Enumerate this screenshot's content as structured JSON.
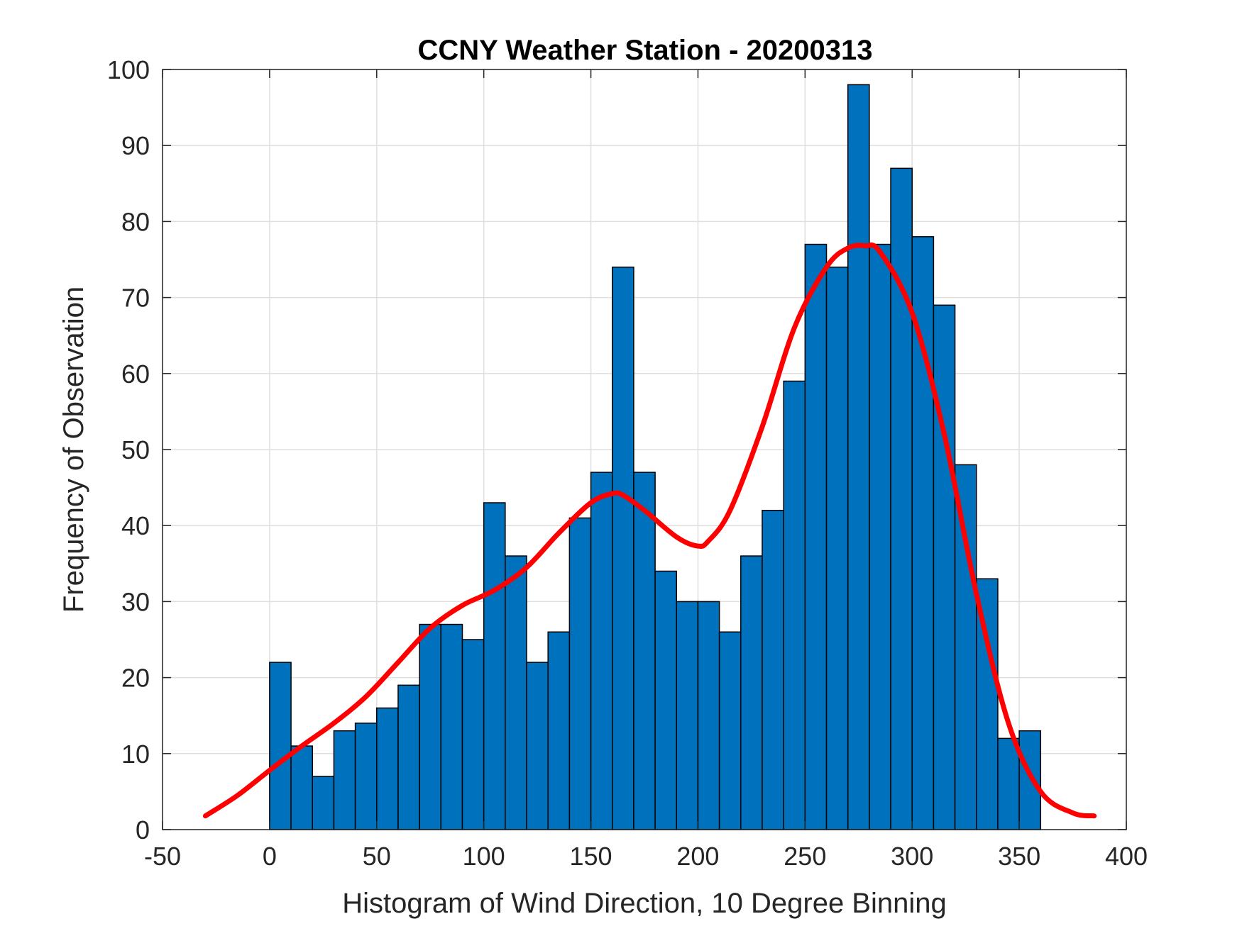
{
  "chart_data": {
    "type": "bar",
    "title": "CCNY Weather Station - 20200313",
    "xlabel": "Histogram of Wind Direction, 10 Degree Binning",
    "ylabel": "Frequency of Observation",
    "xlim": [
      -50,
      400
    ],
    "ylim": [
      0,
      100
    ],
    "xticks": [
      -50,
      0,
      50,
      100,
      150,
      200,
      250,
      300,
      350,
      400
    ],
    "yticks": [
      0,
      10,
      20,
      30,
      40,
      50,
      60,
      70,
      80,
      90,
      100
    ],
    "grid": true,
    "bin_width": 10,
    "bin_edges_start": [
      0,
      10,
      20,
      30,
      40,
      50,
      60,
      70,
      80,
      90,
      100,
      110,
      120,
      130,
      140,
      150,
      160,
      170,
      180,
      190,
      200,
      210,
      220,
      230,
      240,
      250,
      260,
      270,
      280,
      290,
      300,
      310,
      320,
      330,
      340,
      350
    ],
    "values": [
      22,
      11,
      7,
      13,
      14,
      16,
      19,
      27,
      27,
      25,
      43,
      36,
      22,
      26,
      41,
      47,
      74,
      47,
      34,
      30,
      30,
      26,
      36,
      42,
      59,
      77,
      74,
      98,
      77,
      87,
      78,
      69,
      48,
      33,
      12,
      13
    ],
    "bar_color": "#0072BD",
    "bar_edge_color": "#000000",
    "fit_curve": {
      "color": "#FF0000",
      "x": [
        -30,
        -15,
        0,
        15,
        30,
        45,
        60,
        75,
        90,
        105,
        120,
        135,
        150,
        160,
        165,
        175,
        190,
        200,
        205,
        215,
        230,
        245,
        260,
        270,
        278,
        285,
        300,
        315,
        330,
        345,
        360,
        375,
        385
      ],
      "y": [
        1.8,
        4.5,
        7.8,
        11,
        14,
        17.5,
        22,
        26.5,
        29.5,
        31.5,
        34.5,
        39,
        43,
        44.2,
        44,
        42,
        38.5,
        37.3,
        38,
        42,
        53,
        66,
        74,
        76.5,
        76.8,
        76,
        68,
        52,
        31,
        14,
        5,
        2.2,
        1.8
      ]
    }
  }
}
